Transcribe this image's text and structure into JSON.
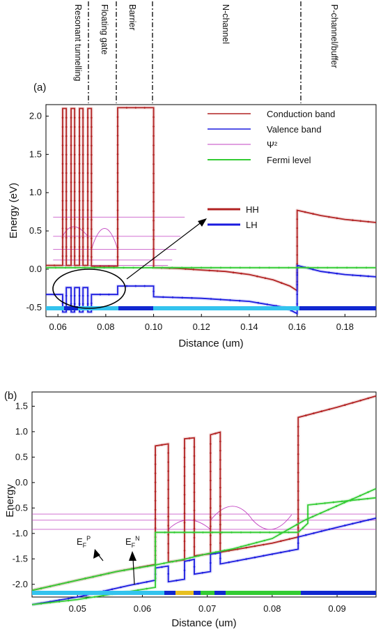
{
  "chart_data": [
    {
      "type": "line",
      "panel_label": "(a)",
      "xlabel": "Distance (um)",
      "ylabel": "Energy   (eV)",
      "xlim": [
        0.055,
        0.193
      ],
      "ylim": [
        -0.62,
        2.15
      ],
      "x_ticks": [
        "0.06",
        "0.08",
        "0.10",
        "0.12",
        "0.14",
        "0.16",
        "0.18"
      ],
      "y_ticks": [
        "2.0",
        "1.5",
        "1.0",
        "0.5",
        "0.0",
        "-0.5"
      ],
      "regions": [
        "Resonant tunnelling",
        "Floating gate",
        "Barrier",
        "N-channel",
        "P-channel/buffer"
      ],
      "region_boundaries": [
        0.074,
        0.085,
        0.1,
        0.16
      ],
      "legend": {
        "placement": "top-right",
        "entries": [
          "Conduction band",
          "Valence band",
          "Ψ²",
          "Fermi level"
        ],
        "inset_entries": [
          "HH",
          "LH"
        ]
      },
      "colors": {
        "conduction": "#b22222",
        "valence": "#1a1adf",
        "psi": "#c040c0",
        "fermi": "#33cc33",
        "strip_a": "#33c3ee",
        "strip_b": "#1028d0"
      },
      "series": [
        {
          "name": "Conduction band",
          "points": [
            [
              0.055,
              0.05
            ],
            [
              0.062,
              0.05
            ],
            [
              0.062,
              2.1
            ],
            [
              0.0635,
              2.1
            ],
            [
              0.0635,
              0.05
            ],
            [
              0.0655,
              0.05
            ],
            [
              0.0655,
              2.1
            ],
            [
              0.067,
              2.1
            ],
            [
              0.067,
              0.05
            ],
            [
              0.069,
              0.05
            ],
            [
              0.069,
              2.1
            ],
            [
              0.0705,
              2.1
            ],
            [
              0.0705,
              0.05
            ],
            [
              0.0725,
              0.05
            ],
            [
              0.0725,
              2.1
            ],
            [
              0.074,
              2.1
            ],
            [
              0.074,
              0.04
            ],
            [
              0.085,
              0.04
            ],
            [
              0.085,
              2.11
            ],
            [
              0.1,
              2.11
            ],
            [
              0.1,
              0.02
            ],
            [
              0.11,
              0.01
            ],
            [
              0.12,
              -0.01
            ],
            [
              0.13,
              -0.03
            ],
            [
              0.14,
              -0.07
            ],
            [
              0.15,
              -0.14
            ],
            [
              0.157,
              -0.22
            ],
            [
              0.16,
              -0.28
            ],
            [
              0.16,
              0.77
            ],
            [
              0.17,
              0.7
            ],
            [
              0.18,
              0.65
            ],
            [
              0.193,
              0.61
            ]
          ]
        },
        {
          "name": "Valence band",
          "points": [
            [
              0.055,
              -0.33
            ],
            [
              0.062,
              -0.33
            ],
            [
              0.062,
              -0.56
            ],
            [
              0.0635,
              -0.56
            ],
            [
              0.0635,
              -0.24
            ],
            [
              0.0655,
              -0.24
            ],
            [
              0.0655,
              -0.56
            ],
            [
              0.067,
              -0.56
            ],
            [
              0.067,
              -0.24
            ],
            [
              0.069,
              -0.24
            ],
            [
              0.069,
              -0.56
            ],
            [
              0.0705,
              -0.56
            ],
            [
              0.0705,
              -0.24
            ],
            [
              0.0725,
              -0.24
            ],
            [
              0.0725,
              -0.56
            ],
            [
              0.074,
              -0.56
            ],
            [
              0.074,
              -0.33
            ],
            [
              0.085,
              -0.33
            ],
            [
              0.085,
              -0.22
            ],
            [
              0.1,
              -0.22
            ],
            [
              0.1,
              -0.36
            ],
            [
              0.12,
              -0.38
            ],
            [
              0.14,
              -0.42
            ],
            [
              0.155,
              -0.5
            ],
            [
              0.16,
              -0.58
            ],
            [
              0.16,
              0.05
            ],
            [
              0.17,
              -0.03
            ],
            [
              0.18,
              -0.07
            ],
            [
              0.193,
              -0.1
            ]
          ]
        },
        {
          "name": "Fermi level",
          "points": [
            [
              0.055,
              0.02
            ],
            [
              0.193,
              0.02
            ]
          ]
        }
      ],
      "psi_levels": [
        0.68,
        0.43,
        0.26,
        0.12,
        0.05
      ]
    },
    {
      "type": "line",
      "panel_label": "(b)",
      "xlabel": "Distance (um)",
      "ylabel": "Energy",
      "xlim": [
        0.043,
        0.096
      ],
      "ylim": [
        -2.25,
        1.78
      ],
      "x_ticks": [
        "0.05",
        "0.06",
        "0.07",
        "0.08",
        "0.09"
      ],
      "y_ticks": [
        "1.5",
        "1.0",
        "0.5",
        "0.0",
        "-0.5",
        "-1.0",
        "-1.5",
        "-2.0"
      ],
      "annotations": [
        "E",
        "F",
        "P",
        "E",
        "F",
        "N"
      ],
      "colors": {
        "conduction": "#b22222",
        "valence": "#1a1adf",
        "psi": "#c040c0",
        "fermi": "#33cc33",
        "strip_a": "#33c3ee",
        "strip_b": "#1028d0",
        "strip_c": "#e8c020",
        "strip_d": "#33cc33"
      },
      "series": [
        {
          "name": "Conduction band",
          "points": [
            [
              0.043,
              -2.12
            ],
            [
              0.05,
              -1.92
            ],
            [
              0.056,
              -1.75
            ],
            [
              0.062,
              -1.61
            ],
            [
              0.062,
              0.72
            ],
            [
              0.064,
              0.76
            ],
            [
              0.064,
              -1.56
            ],
            [
              0.0665,
              -1.52
            ],
            [
              0.0665,
              0.86
            ],
            [
              0.068,
              0.88
            ],
            [
              0.068,
              -1.44
            ],
            [
              0.0705,
              -1.4
            ],
            [
              0.0705,
              0.94
            ],
            [
              0.072,
              0.99
            ],
            [
              0.072,
              -1.37
            ],
            [
              0.08,
              -1.19
            ],
            [
              0.084,
              -1.07
            ],
            [
              0.084,
              1.28
            ],
            [
              0.09,
              1.48
            ],
            [
              0.096,
              1.7
            ]
          ]
        },
        {
          "name": "Valence band",
          "points": [
            [
              0.043,
              -2.4
            ],
            [
              0.05,
              -2.25
            ],
            [
              0.058,
              -2.02
            ],
            [
              0.062,
              -1.92
            ],
            [
              0.062,
              -1.68
            ],
            [
              0.064,
              -1.64
            ],
            [
              0.064,
              -1.95
            ],
            [
              0.0665,
              -1.9
            ],
            [
              0.0665,
              -1.55
            ],
            [
              0.068,
              -1.51
            ],
            [
              0.068,
              -1.8
            ],
            [
              0.0705,
              -1.75
            ],
            [
              0.0705,
              -1.41
            ],
            [
              0.072,
              -1.38
            ],
            [
              0.072,
              -1.6
            ],
            [
              0.084,
              -1.31
            ],
            [
              0.084,
              -1.07
            ],
            [
              0.09,
              -0.88
            ],
            [
              0.096,
              -0.7
            ]
          ]
        },
        {
          "name": "Fermi level P",
          "points": [
            [
              0.043,
              -2.12
            ],
            [
              0.05,
              -1.92
            ],
            [
              0.056,
              -1.75
            ],
            [
              0.062,
              -1.62
            ],
            [
              0.066,
              -1.52
            ],
            [
              0.07,
              -1.4
            ],
            [
              0.074,
              -1.3
            ],
            [
              0.08,
              -1.1
            ],
            [
              0.085,
              -0.74
            ],
            [
              0.096,
              -0.12
            ]
          ]
        },
        {
          "name": "Fermi level N",
          "points": [
            [
              0.043,
              -2.4
            ],
            [
              0.05,
              -2.3
            ],
            [
              0.058,
              -2.14
            ],
            [
              0.062,
              -2.06
            ],
            [
              0.062,
              -0.98
            ],
            [
              0.084,
              -0.98
            ],
            [
              0.0855,
              -0.8
            ],
            [
              0.0855,
              -0.44
            ],
            [
              0.096,
              -0.3
            ]
          ]
        }
      ],
      "psi_levels": [
        -0.62,
        -0.74,
        -0.92
      ]
    }
  ]
}
